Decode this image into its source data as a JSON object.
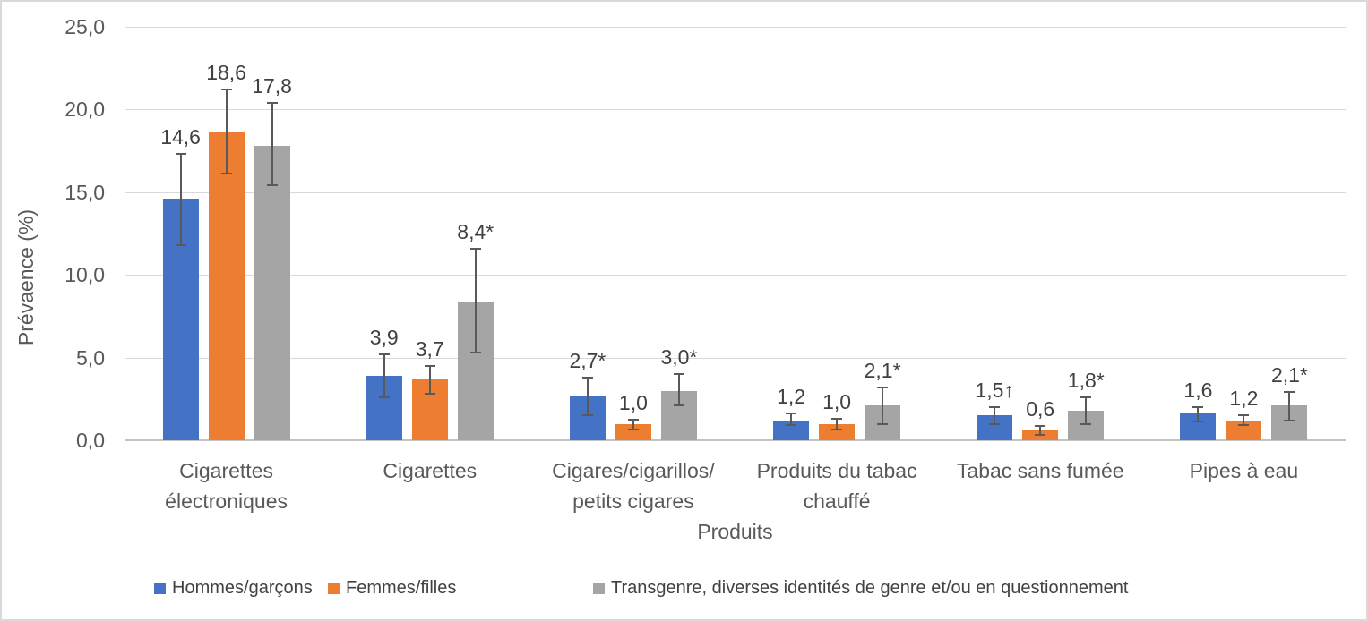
{
  "chart_data": {
    "type": "bar",
    "title": "",
    "xlabel": "Produits",
    "ylabel": "Prévaence (%)",
    "ylim": [
      0,
      25
    ],
    "grid": true,
    "legend_position": "bottom",
    "yticks": [
      {
        "value": 0,
        "label": "0,0"
      },
      {
        "value": 5,
        "label": "5,0"
      },
      {
        "value": 10,
        "label": "10,0"
      },
      {
        "value": 15,
        "label": "15,0"
      },
      {
        "value": 20,
        "label": "20,0"
      },
      {
        "value": 25,
        "label": "25,0"
      }
    ],
    "categories": [
      {
        "label": "Cigarettes électroniques",
        "lines": [
          "Cigarettes",
          "électroniques"
        ]
      },
      {
        "label": "Cigarettes",
        "lines": [
          "Cigarettes"
        ]
      },
      {
        "label": "Cigares/cigarillos/petits cigares",
        "lines": [
          "Cigares/cigarillos/",
          "petits cigares"
        ]
      },
      {
        "label": "Produits du tabac chauffé",
        "lines": [
          "Produits du tabac",
          "chauffé"
        ]
      },
      {
        "label": "Tabac sans fumée",
        "lines": [
          "Tabac sans fumée"
        ]
      },
      {
        "label": "Pipes à eau",
        "lines": [
          "Pipes à eau"
        ]
      }
    ],
    "series": [
      {
        "name": "Hommes/garçons",
        "color": "#4472C4",
        "values": [
          14.6,
          3.9,
          2.7,
          1.2,
          1.5,
          1.6
        ],
        "labels": [
          "14,6",
          "3,9",
          "2,7*",
          "1,2",
          "1,5↑",
          "1,6"
        ],
        "ci_low": [
          11.8,
          2.6,
          1.5,
          0.9,
          1.0,
          1.15
        ],
        "ci_high": [
          17.3,
          5.2,
          3.8,
          1.6,
          2.0,
          2.0
        ]
      },
      {
        "name": "Femmes/filles",
        "color": "#ED7D31",
        "values": [
          18.6,
          3.7,
          1.0,
          1.0,
          0.6,
          1.2
        ],
        "labels": [
          "18,6",
          "3,7",
          "1,0",
          "1,0",
          "0,6",
          "1,2"
        ],
        "ci_low": [
          16.1,
          2.8,
          0.65,
          0.65,
          0.35,
          0.9
        ],
        "ci_high": [
          21.2,
          4.5,
          1.25,
          1.3,
          0.85,
          1.5
        ]
      },
      {
        "name": "Transgenre, diverses identités de genre et/ou en questionnement",
        "color": "#A5A5A5",
        "values": [
          17.8,
          8.4,
          3.0,
          2.1,
          1.8,
          2.1
        ],
        "labels": [
          "17,8",
          "8,4*",
          "3,0*",
          "2,1*",
          "1,8*",
          "2,1*"
        ],
        "ci_low": [
          15.4,
          5.3,
          2.1,
          1.0,
          1.0,
          1.2
        ],
        "ci_high": [
          20.4,
          11.6,
          4.0,
          3.2,
          2.6,
          2.9
        ]
      }
    ],
    "style": {
      "error_bar_color": "#595959",
      "gridline_color": "#D9D9D9",
      "axis_line_color": "#C3C3C3",
      "axis_text_color": "#595959",
      "data_label_color": "#404040",
      "border_color": "#D9D9D9",
      "background": "#FFFFFF"
    }
  }
}
